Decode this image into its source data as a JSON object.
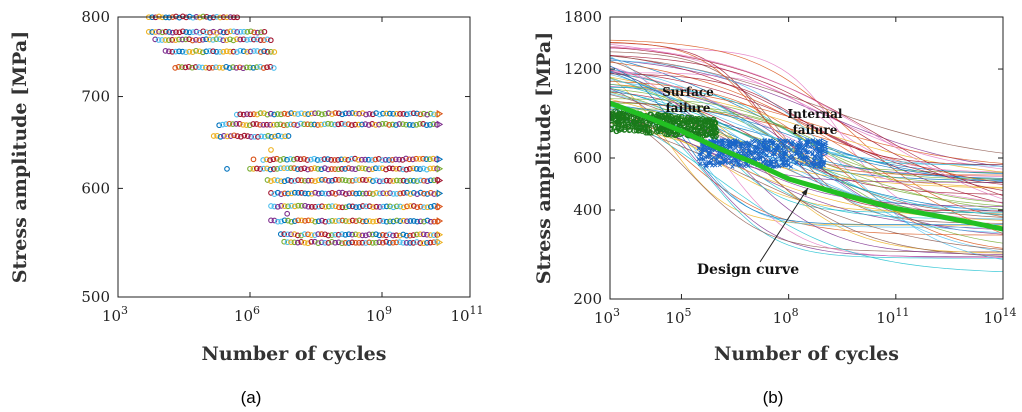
{
  "chart_data": [
    {
      "type": "scatter",
      "panel_label": "(a)",
      "xlabel": "Number of cycles",
      "ylabel": "Stress amplitude [MPa]",
      "xscale": "log",
      "yscale": "log",
      "xlim": [
        1000,
        100000000000
      ],
      "ylim": [
        500,
        800
      ],
      "xticks": [
        {
          "value": 1000,
          "base": "10",
          "exp": "3"
        },
        {
          "value": 1000000,
          "base": "10",
          "exp": "6"
        },
        {
          "value": 1000000000,
          "base": "10",
          "exp": "9"
        },
        {
          "value": 100000000000,
          "base": "10",
          "exp": "11"
        }
      ],
      "yticks": [
        {
          "value": 500,
          "label": "500"
        },
        {
          "value": 600,
          "label": "600"
        },
        {
          "value": 700,
          "label": "700"
        },
        {
          "value": 800,
          "label": "800"
        }
      ],
      "grid": false,
      "point_bands": [
        {
          "stress": 800,
          "n_min": 5000,
          "n_max": 600000
        },
        {
          "stress": 780,
          "n_min": 5000,
          "n_max": 2500000
        },
        {
          "stress": 770,
          "n_min": 7000,
          "n_max": 3500000
        },
        {
          "stress": 755,
          "n_min": 12000,
          "n_max": 4000000
        },
        {
          "stress": 735,
          "n_min": 20000,
          "n_max": 3500000
        },
        {
          "stress": 680,
          "n_min": 500000,
          "n_max": 20000000000
        },
        {
          "stress": 668,
          "n_min": 200000,
          "n_max": 20000000000
        },
        {
          "stress": 655,
          "n_min": 150000,
          "n_max": 8000000
        },
        {
          "stress": 630,
          "n_min": 2000000,
          "n_max": 20000000000
        },
        {
          "stress": 620,
          "n_min": 1000000,
          "n_max": 20000000000
        },
        {
          "stress": 608,
          "n_min": 2500000,
          "n_max": 20000000000
        },
        {
          "stress": 595,
          "n_min": 3000000,
          "n_max": 20000000000
        },
        {
          "stress": 582,
          "n_min": 3000000,
          "n_max": 20000000000
        },
        {
          "stress": 568,
          "n_min": 3000000,
          "n_max": 20000000000
        },
        {
          "stress": 555,
          "n_min": 5000000,
          "n_max": 20000000000
        },
        {
          "stress": 548,
          "n_min": 6000000,
          "n_max": 20000000000
        }
      ]
    },
    {
      "type": "line",
      "panel_label": "(b)",
      "xlabel": "Number of cycles",
      "ylabel": "Stress amplitude [MPa]",
      "xscale": "log",
      "yscale": "log",
      "xlim": [
        1000,
        100000000000000
      ],
      "ylim": [
        200,
        1800
      ],
      "xticks": [
        {
          "value": 1000,
          "base": "10",
          "exp": "3"
        },
        {
          "value": 100000,
          "base": "10",
          "exp": "5"
        },
        {
          "value": 100000000,
          "base": "10",
          "exp": "8"
        },
        {
          "value": 100000000000,
          "base": "10",
          "exp": "11"
        },
        {
          "value": 100000000000000,
          "base": "10",
          "exp": "14"
        }
      ],
      "yticks": [
        {
          "value": 200,
          "label": "200"
        },
        {
          "value": 400,
          "label": "400"
        },
        {
          "value": 600,
          "label": "600"
        },
        {
          "value": 1200,
          "label": "1200"
        },
        {
          "value": 1800,
          "label": "1800"
        }
      ],
      "grid": false,
      "design_curve": {
        "x": [
          1000,
          10000,
          100000,
          1000000,
          10000000,
          100000000,
          1000000000,
          10000000000,
          100000000000,
          1000000000000,
          10000000000000,
          100000000000000
        ],
        "y": [
          920,
          830,
          740,
          650,
          580,
          510,
          470,
          435,
          405,
          385,
          365,
          345
        ],
        "color": "#22c022"
      },
      "surface_failure_points": {
        "n_min": 1000,
        "n_max": 1000000,
        "stress_min": 700,
        "stress_max": 870,
        "color": "#1a7a1a"
      },
      "internal_failure_points": {
        "n_min": 300000,
        "n_max": 1000000000,
        "stress_min": 560,
        "stress_max": 690,
        "color": "#1a66c8"
      },
      "annotations": {
        "surface": [
          "Surface",
          "failure"
        ],
        "internal": [
          "Internal",
          "failure"
        ],
        "design": "Design curve"
      }
    }
  ]
}
